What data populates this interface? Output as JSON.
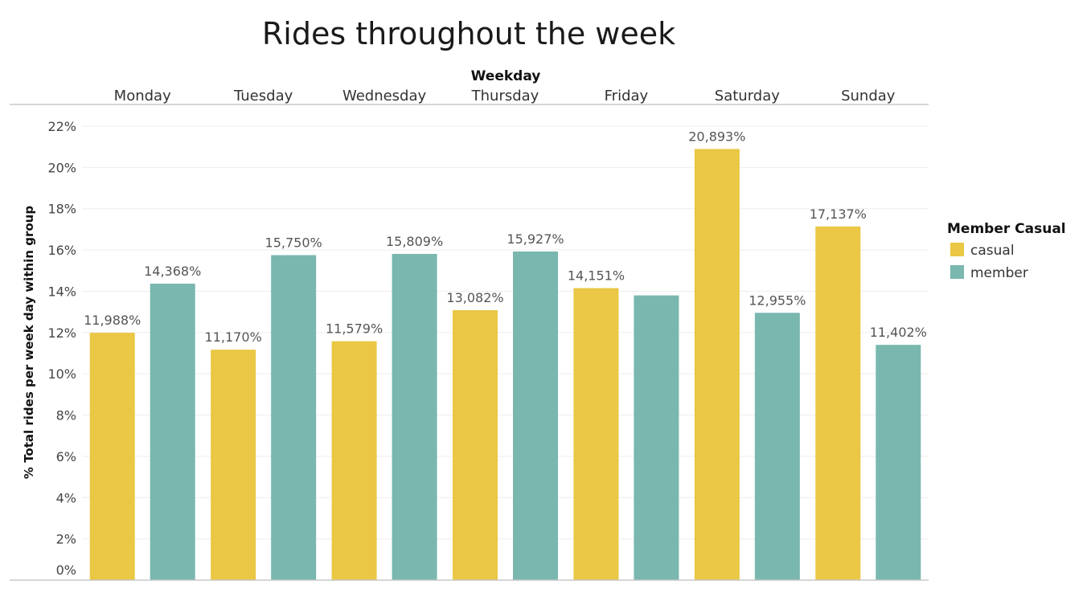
{
  "chart_data": {
    "type": "bar",
    "title": "Rides throughout the week",
    "xlabel": "Weekday",
    "ylabel": "% Total rides per week day within group",
    "categories": [
      "Monday",
      "Tuesday",
      "Wednesday",
      "Thursday",
      "Friday",
      "Saturday",
      "Sunday"
    ],
    "series": [
      {
        "name": "casual",
        "color": "#EAC744",
        "values": [
          11.988,
          11.17,
          11.579,
          13.082,
          14.151,
          20.893,
          17.137
        ],
        "labels": [
          "11,988%",
          "11,170%",
          "11,579%",
          "13,082%",
          "14,151%",
          "20,893%",
          "17,137%"
        ]
      },
      {
        "name": "member",
        "color": "#79B7AF",
        "values": [
          14.368,
          15.75,
          15.809,
          15.927,
          13.8,
          12.955,
          11.402
        ],
        "labels": [
          "14,368%",
          "15,750%",
          "15,809%",
          "15,927%",
          "",
          "12,955%",
          "11,402%"
        ]
      }
    ],
    "ylim": [
      0,
      22
    ],
    "yticks": [
      0,
      2,
      4,
      6,
      8,
      10,
      12,
      14,
      16,
      18,
      20,
      22
    ],
    "ytick_labels": [
      "0%",
      "2%",
      "4%",
      "6%",
      "8%",
      "10%",
      "12%",
      "14%",
      "16%",
      "18%",
      "20%",
      "22%"
    ],
    "grid": true,
    "legend": {
      "title": "Member Casual",
      "placement": "right",
      "entries": [
        "casual",
        "member"
      ]
    }
  }
}
